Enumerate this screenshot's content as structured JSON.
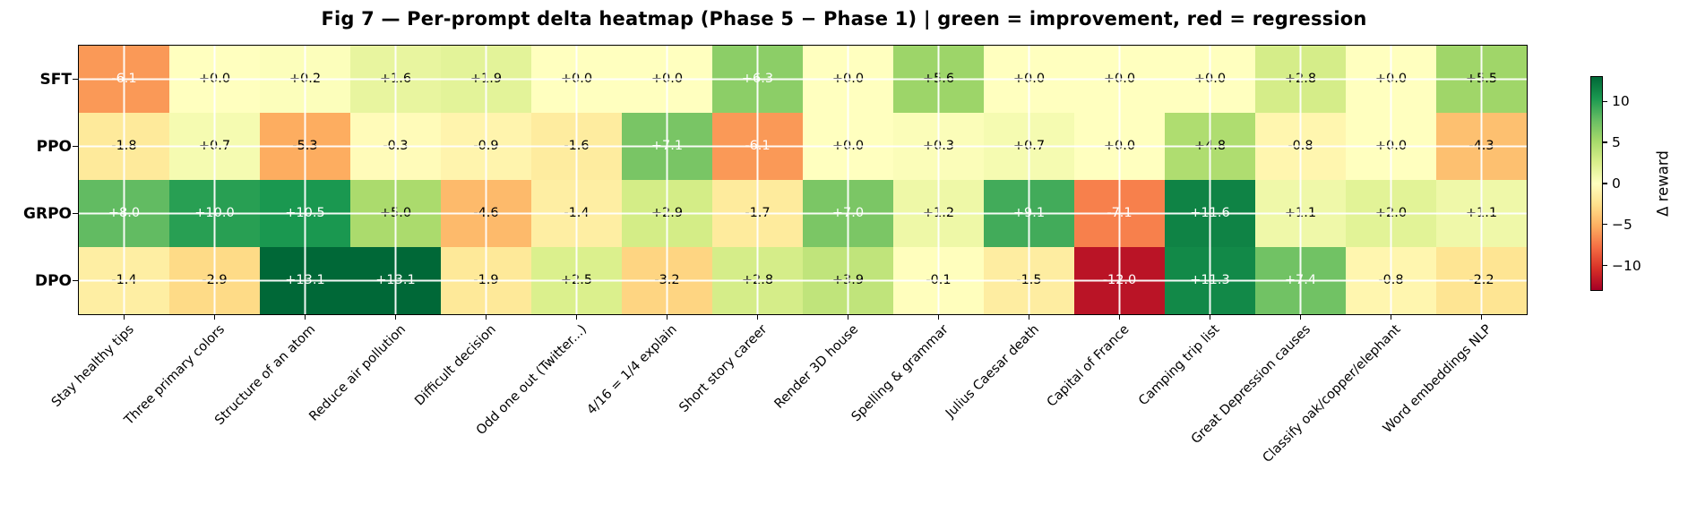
{
  "title": "Fig 7 — Per-prompt delta heatmap (Phase 5 − Phase 1) | green = improvement, red = regression",
  "chart_data": {
    "type": "heatmap",
    "title": "Fig 7 — Per-prompt delta heatmap (Phase 5 − Phase 1) | green = improvement, red = regression",
    "rows": [
      "SFT",
      "PPO",
      "GRPO",
      "DPO"
    ],
    "categories": [
      "Stay healthy tips",
      "Three primary colors",
      "Structure of an atom",
      "Reduce air pollution",
      "Difficult decision",
      "Odd one out (Twitter...)",
      "4/16 = 1/4 explain",
      "Short story career",
      "Render 3D house",
      "Spelling & grammar",
      "Julius Caesar death",
      "Capital of France",
      "Camping trip list",
      "Great Depression causes",
      "Classify oak/copper/elephant",
      "Word embeddings NLP"
    ],
    "series": [
      {
        "name": "SFT",
        "values": [
          -6.1,
          0.0,
          0.2,
          1.6,
          1.9,
          0.0,
          0.0,
          6.3,
          0.0,
          5.6,
          0.0,
          0.0,
          0.0,
          2.8,
          0.0,
          5.5
        ],
        "labels": [
          "-6.1",
          "+0.0",
          "+0.2",
          "+1.6",
          "+1.9",
          "+0.0",
          "+0.0",
          "+6.3",
          "+0.0",
          "+5.6",
          "+0.0",
          "+0.0",
          "+0.0",
          "+2.8",
          "+0.0",
          "+5.5"
        ]
      },
      {
        "name": "PPO",
        "values": [
          -1.8,
          0.7,
          -5.3,
          -0.3,
          -0.9,
          -1.6,
          7.1,
          -6.1,
          0.0,
          0.3,
          0.7,
          0.0,
          4.8,
          -0.8,
          0.0,
          -4.3
        ],
        "labels": [
          "-1.8",
          "+0.7",
          "-5.3",
          "-0.3",
          "-0.9",
          "-1.6",
          "+7.1",
          "-6.1",
          "+0.0",
          "+0.3",
          "+0.7",
          "+0.0",
          "+4.8",
          "-0.8",
          "+0.0",
          "-4.3"
        ]
      },
      {
        "name": "GRPO",
        "values": [
          8.0,
          10.0,
          10.5,
          5.0,
          -4.6,
          -1.4,
          2.9,
          -1.7,
          7.0,
          1.2,
          9.1,
          -7.1,
          11.6,
          1.1,
          2.0,
          1.1
        ],
        "labels": [
          "+8.0",
          "+10.0",
          "+10.5",
          "+5.0",
          "-4.6",
          "-1.4",
          "+2.9",
          "-1.7",
          "+7.0",
          "+1.2",
          "+9.1",
          "-7.1",
          "+11.6",
          "+1.1",
          "+2.0",
          "+1.1"
        ]
      },
      {
        "name": "DPO",
        "values": [
          -1.4,
          -2.9,
          13.1,
          13.1,
          -1.9,
          2.5,
          -3.2,
          2.8,
          3.9,
          -0.1,
          -1.5,
          -12.0,
          11.3,
          7.4,
          -0.8,
          -2.2
        ],
        "labels": [
          "-1.4",
          "-2.9",
          "+13.1",
          "+13.1",
          "-1.9",
          "+2.5",
          "-3.2",
          "+2.8",
          "+3.9",
          "-0.1",
          "-1.5",
          "-12.0",
          "+11.3",
          "+7.4",
          "-0.8",
          "-2.2"
        ]
      }
    ],
    "colormap": "RdYlGn",
    "vmin": -13.1,
    "vmax": 13.1,
    "grid": "white cross gridlines at cell centers",
    "cell_text_rule": "white text when |delta| >= 6, else black",
    "colorbar": {
      "label": "Δ reward",
      "position": "right",
      "tick_values": [
        10,
        5,
        0,
        -5,
        -10
      ],
      "tick_labels": [
        "10",
        "5",
        "0",
        "−5",
        "−10"
      ]
    }
  }
}
